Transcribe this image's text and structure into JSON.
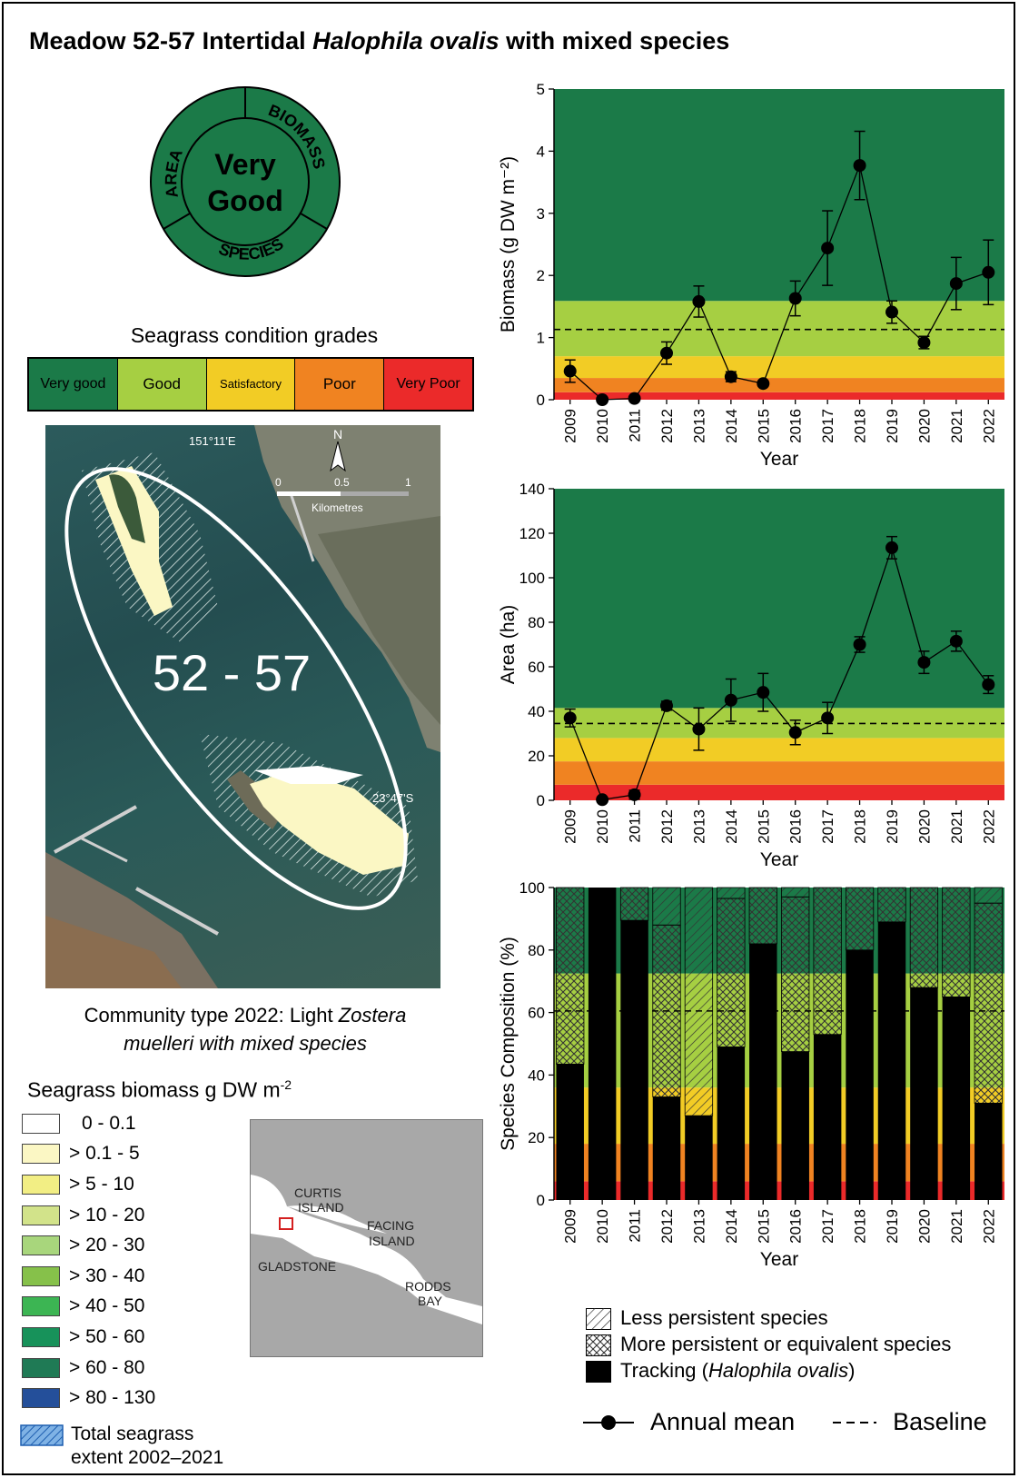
{
  "page": {
    "title_prefix": "Meadow 52-57 Intertidal ",
    "title_species": "Halophila ovalis",
    "title_suffix": " with mixed species"
  },
  "score_badge": {
    "center_line1": "Very",
    "center_line2": "Good",
    "area_label": "AREA",
    "biomass_label": "BIOMASS",
    "species_label": "SPECIES",
    "color": "#1b7a48"
  },
  "grades": {
    "title": "Seagrass condition grades",
    "items": [
      {
        "label": "Very good",
        "color": "#1b7a48"
      },
      {
        "label": "Good",
        "color": "#a6cf42"
      },
      {
        "label": "Satisfactory",
        "color": "#f2cc25"
      },
      {
        "label": "Poor",
        "color": "#f08321"
      },
      {
        "label": "Very Poor",
        "color": "#eb2a2a"
      }
    ]
  },
  "map": {
    "meadow_label": "52 - 57",
    "lon_label": "151°11'E",
    "lat_label": "23°47'S",
    "north_label": "N",
    "scale_labels": [
      "0",
      "0.5",
      "1"
    ],
    "scale_unit": "Kilometres"
  },
  "caption": {
    "line1_prefix": "Community type 2022: Light ",
    "line1_species": "Zostera",
    "line2_species": "muelleri",
    "line2_suffix": " with mixed species"
  },
  "biomass_legend": {
    "title": "Seagrass biomass g DW m",
    "title_sup": "-2",
    "items": [
      {
        "label": "0 - 0.1",
        "color": "#ffffff"
      },
      {
        "label": "> 0.1 - 5",
        "color": "#fbf7c4"
      },
      {
        "label": "> 5 - 10",
        "color": "#f2ee84"
      },
      {
        "label": "> 10 - 20",
        "color": "#d2e38a"
      },
      {
        "label": "> 20 - 30",
        "color": "#a8d67c"
      },
      {
        "label": "> 30 - 40",
        "color": "#86c14a"
      },
      {
        "label": "> 40 - 50",
        "color": "#3cb553"
      },
      {
        "label": "> 50 - 60",
        "color": "#17925a"
      },
      {
        "label": "> 60 - 80",
        "color": "#1f7a55"
      },
      {
        "label": "> 80 - 130",
        "color": "#244f9a"
      }
    ],
    "extent_line1": "Total seagrass",
    "extent_line2": "extent  2002–2021"
  },
  "inset_map": {
    "labels": [
      "CURTIS",
      "ISLAND",
      "FACING",
      "ISLAND",
      "GLADSTONE",
      "RODDS",
      "BAY"
    ]
  },
  "species_legend": {
    "less_label": "Less persistent species",
    "more_label": "More persistent or equivalent species",
    "tracking_prefix": "Tracking (",
    "tracking_species": "Halophila ovalis",
    "tracking_suffix": ")"
  },
  "line_legend": {
    "annual_mean": "Annual mean",
    "baseline": "Baseline"
  },
  "chart_data": [
    {
      "type": "line",
      "ylabel": "Biomass (g DW m⁻²)",
      "xlabel": "Year",
      "ylim": [
        0,
        5
      ],
      "yticks": [
        0,
        1,
        2,
        3,
        4,
        5
      ],
      "x": [
        "2009",
        "2010",
        "2011",
        "2012",
        "2013",
        "2014",
        "2015",
        "2016",
        "2017",
        "2018",
        "2019",
        "2020",
        "2021",
        "2022"
      ],
      "values": [
        0.46,
        0.0,
        0.02,
        0.75,
        1.58,
        0.37,
        0.26,
        1.63,
        2.44,
        3.77,
        1.41,
        0.92,
        1.87,
        2.05
      ],
      "error": [
        0.18,
        0.0,
        0.02,
        0.18,
        0.25,
        0.08,
        0.03,
        0.28,
        0.6,
        0.55,
        0.18,
        0.1,
        0.42,
        0.52
      ],
      "baseline": 1.13,
      "grade_bands": [
        0.12,
        0.35,
        0.7,
        1.59,
        5
      ]
    },
    {
      "type": "line",
      "ylabel": "Area (ha)",
      "xlabel": "Year",
      "ylim": [
        0,
        140
      ],
      "yticks": [
        0,
        20,
        40,
        60,
        80,
        100,
        120,
        140
      ],
      "x": [
        "2009",
        "2010",
        "2011",
        "2012",
        "2013",
        "2014",
        "2015",
        "2016",
        "2017",
        "2018",
        "2019",
        "2020",
        "2021",
        "2022"
      ],
      "values": [
        37,
        0.3,
        2.5,
        42.5,
        32,
        45,
        48.5,
        30.5,
        37,
        70,
        113.5,
        62,
        71.5,
        52
      ],
      "error": [
        4,
        0.3,
        2,
        2,
        9.5,
        9.5,
        8.5,
        5.5,
        7,
        3.5,
        5,
        5,
        4.5,
        4
      ],
      "baseline": 34.5,
      "grade_bands": [
        7,
        17.5,
        28,
        41.5,
        140
      ]
    },
    {
      "type": "bar",
      "ylabel": "Species Composition (%)",
      "xlabel": "Year",
      "ylim": [
        0,
        100
      ],
      "yticks": [
        0,
        20,
        40,
        60,
        80,
        100
      ],
      "categories": [
        "2009",
        "2010",
        "2011",
        "2012",
        "2013",
        "2014",
        "2015",
        "2016",
        "2017",
        "2018",
        "2019",
        "2020",
        "2021",
        "2022"
      ],
      "series": [
        {
          "name": "Tracking (Halophila ovalis)",
          "values": [
            43.5,
            100,
            89.5,
            33,
            27,
            49,
            82,
            47.5,
            53,
            80,
            89,
            68,
            65,
            31
          ]
        },
        {
          "name": "More persistent or equivalent species",
          "values": [
            56.5,
            0,
            10.5,
            55,
            0,
            47.5,
            18,
            49.5,
            47,
            20,
            11,
            32,
            35,
            64
          ]
        },
        {
          "name": "Less persistent species",
          "values": [
            0,
            0,
            0,
            12,
            73,
            3.5,
            0,
            3,
            0,
            0,
            0,
            0,
            0,
            5
          ]
        }
      ],
      "baseline": 60.5,
      "grade_bands": [
        6,
        18,
        36,
        72.5,
        100
      ]
    }
  ]
}
